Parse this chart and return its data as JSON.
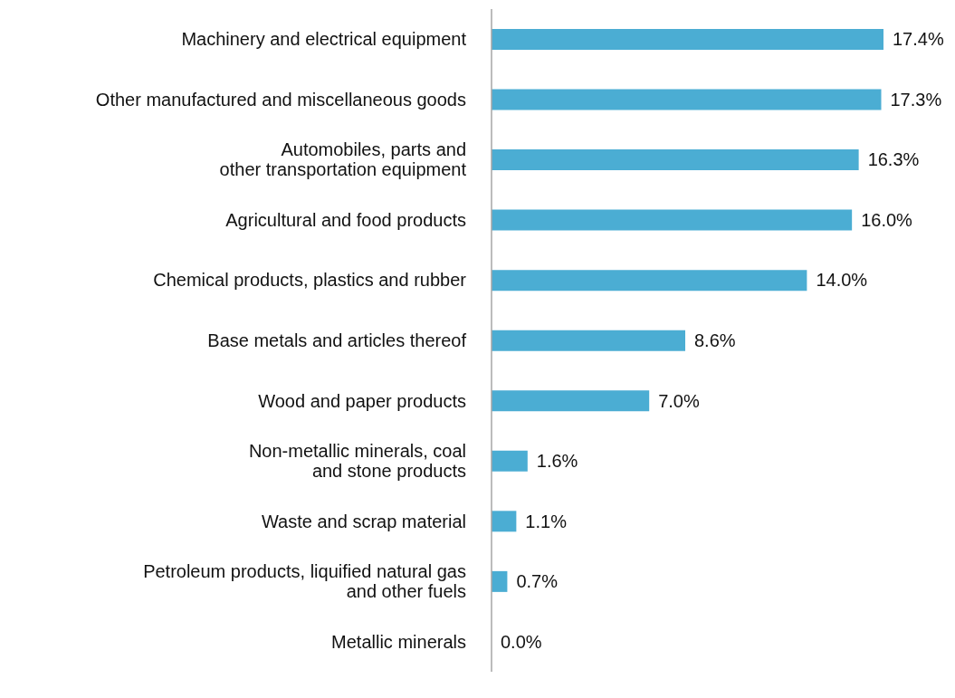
{
  "chart_data": {
    "type": "bar",
    "orientation": "horizontal",
    "tick_labels": "y",
    "categories": [
      "Machinery and electrical equipment",
      "Other manufactured and miscellaneous goods",
      "Automobiles, parts and\nother transportation equipment",
      "Agricultural and food products",
      "Chemical products, plastics and rubber",
      "Base metals and articles thereof",
      "Wood and paper products",
      "Non-metallic minerals, coal\nand stone products",
      "Waste and scrap material",
      "Petroleum products, liquified natural gas\nand other fuels",
      "Metallic minerals"
    ],
    "values": [
      17.4,
      17.3,
      16.3,
      16.0,
      14.0,
      8.6,
      7.0,
      1.6,
      1.1,
      0.7,
      0.0
    ],
    "value_labels": [
      "17.4%",
      "17.3%",
      "16.3%",
      "16.0%",
      "14.0%",
      "8.6%",
      "7.0%",
      "1.6%",
      "1.1%",
      "0.7%",
      "0.0%"
    ],
    "color": "#4badd3"
  }
}
